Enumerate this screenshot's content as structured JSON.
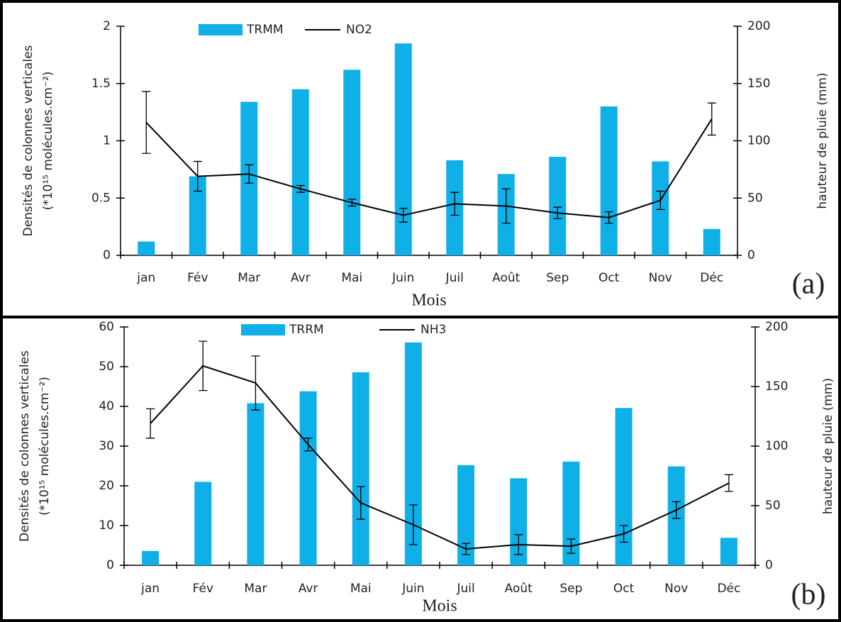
{
  "chart_data": [
    {
      "type": "combo",
      "panel_label": "(a)",
      "xlabel": "Mois",
      "ylabel": [
        "Densités de colonnes verticales",
        "(*10¹⁵ molécules.cm⁻²)"
      ],
      "y2label": "hauteur de pluie (mm)",
      "categories": [
        "jan",
        "Fév",
        "Mar",
        "Avr",
        "Mai",
        "Juin",
        "Juil",
        "Août",
        "Sep",
        "Oct",
        "Nov",
        "Déc"
      ],
      "ylim": [
        0,
        2
      ],
      "yticks": [
        0,
        0.5,
        1,
        1.5,
        2
      ],
      "y2lim": [
        0,
        200
      ],
      "y2ticks": [
        0,
        50,
        100,
        150,
        200
      ],
      "series": [
        {
          "name": "TRMM",
          "kind": "bar",
          "axis": "y2",
          "color": "#0fb0e8",
          "values": [
            12,
            69,
            134,
            145,
            162,
            185,
            83,
            71,
            86,
            130,
            82,
            23
          ]
        },
        {
          "name": "NO2",
          "kind": "line",
          "color": "#000000",
          "values": [
            1.16,
            0.69,
            0.71,
            0.58,
            0.46,
            0.35,
            0.45,
            0.43,
            0.37,
            0.33,
            0.48,
            1.19
          ],
          "errors": [
            0.27,
            0.13,
            0.08,
            0.03,
            0.03,
            0.06,
            0.1,
            0.15,
            0.05,
            0.05,
            0.08,
            0.14
          ]
        }
      ]
    },
    {
      "type": "combo",
      "panel_label": "(b)",
      "xlabel": "Mois",
      "ylabel": [
        "Densités de colonnes verticales",
        "(*10¹⁵ molécules.cm⁻²)"
      ],
      "y2label": "hauteur de pluie (mm)",
      "categories": [
        "jan",
        "Fév",
        "Mar",
        "Avr",
        "Mai",
        "Juin",
        "Juil",
        "Août",
        "Sep",
        "Oct",
        "Nov",
        "Déc"
      ],
      "ylim": [
        0,
        60
      ],
      "yticks": [
        0,
        10,
        20,
        30,
        40,
        50,
        60
      ],
      "y2lim": [
        0,
        200
      ],
      "y2ticks": [
        0,
        50,
        100,
        150,
        200
      ],
      "series": [
        {
          "name": "TRRM",
          "kind": "bar",
          "axis": "y2",
          "color": "#0fb0e8",
          "values": [
            12,
            70,
            136,
            146,
            162,
            187,
            84,
            73,
            87,
            132,
            83,
            23
          ]
        },
        {
          "name": "NH3",
          "kind": "line",
          "color": "#000000",
          "values": [
            35.7,
            50.2,
            45.9,
            30.4,
            15.7,
            10.2,
            4.1,
            5.2,
            4.8,
            7.9,
            13.9,
            20.7
          ],
          "errors": [
            3.7,
            6.2,
            6.8,
            1.6,
            4.1,
            5,
            1.4,
            2.5,
            1.8,
            2.1,
            2.1,
            2.1
          ]
        }
      ]
    }
  ]
}
